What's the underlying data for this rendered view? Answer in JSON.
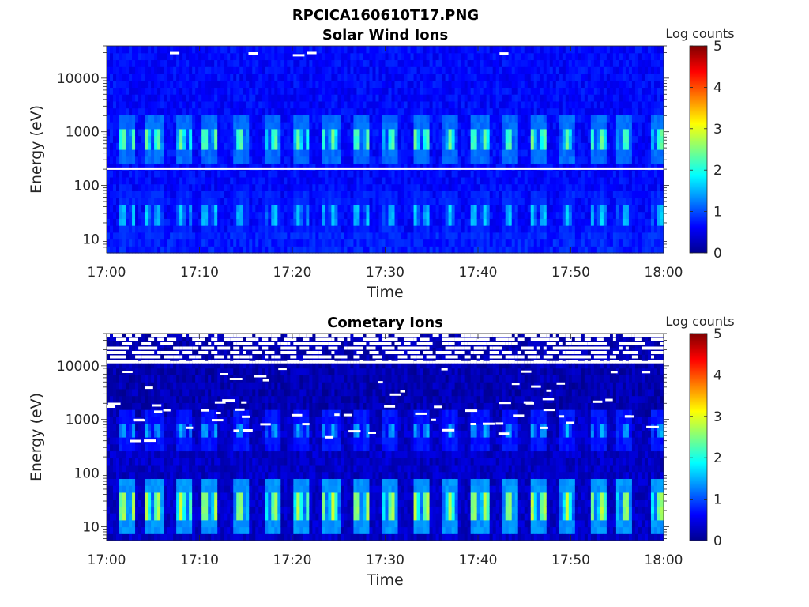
{
  "figure": {
    "title": "RPCICA160610T17.PNG",
    "colormap": "jet"
  },
  "chart_data": [
    {
      "type": "heatmap",
      "title": "Solar Wind Ions",
      "xlabel": "Time",
      "ylabel": "Energy (eV)",
      "y_scale": "log",
      "xlim": [
        "17:00",
        "18:00"
      ],
      "ylim": [
        5.5,
        40000
      ],
      "x_ticks": [
        "17:00",
        "17:10",
        "17:20",
        "17:30",
        "17:40",
        "17:50",
        "18:00"
      ],
      "y_ticks": [
        {
          "value": 10,
          "label": "10"
        },
        {
          "value": 100,
          "label": "100"
        },
        {
          "value": 1000,
          "label": "1000"
        },
        {
          "value": 10000,
          "label": "10000"
        }
      ],
      "colorbar": {
        "label": "Log counts",
        "range": [
          0,
          5
        ],
        "ticks": [
          "0",
          "1",
          "2",
          "3",
          "4",
          "5"
        ]
      },
      "background_level": 0.65,
      "bands": [
        {
          "energy_low": 480,
          "energy_high": 1100,
          "peak_level": 2.1
        },
        {
          "energy_low": 18,
          "energy_high": 38,
          "peak_level": 1.45
        }
      ],
      "pulse_start_minutes": [
        1.5,
        4.4,
        7.5,
        10.5,
        13.8,
        17.1,
        20.3,
        23.5,
        26.8,
        29.8,
        33.1,
        36.3,
        39.5,
        42.8,
        45.8,
        48.9,
        52.2,
        55.1,
        58.7
      ],
      "pulse_duration_minutes": 1.6,
      "missing_energy_line": 205,
      "sparse_high_energy_gaps": true
    },
    {
      "type": "heatmap",
      "title": "Cometary Ions",
      "xlabel": "Time",
      "ylabel": "Energy (eV)",
      "y_scale": "log",
      "xlim": [
        "17:00",
        "18:00"
      ],
      "ylim": [
        5.5,
        40000
      ],
      "x_ticks": [
        "17:00",
        "17:10",
        "17:20",
        "17:30",
        "17:40",
        "17:50",
        "18:00"
      ],
      "y_ticks": [
        {
          "value": 10,
          "label": "10"
        },
        {
          "value": 100,
          "label": "100"
        },
        {
          "value": 1000,
          "label": "1000"
        },
        {
          "value": 10000,
          "label": "10000"
        }
      ],
      "colorbar": {
        "label": "Log counts",
        "range": [
          0,
          5
        ],
        "ticks": [
          "0",
          "1",
          "2",
          "3",
          "4",
          "5"
        ]
      },
      "background_level": 0.35,
      "bands": [
        {
          "energy_low": 530,
          "energy_high": 850,
          "peak_level": 1.3
        },
        {
          "energy_low": 14,
          "energy_high": 40,
          "peak_level": 2.45
        }
      ],
      "pulse_start_minutes": [
        1.5,
        4.4,
        7.5,
        10.5,
        13.8,
        17.1,
        20.3,
        23.5,
        26.8,
        29.8,
        33.1,
        36.3,
        39.5,
        42.8,
        45.8,
        48.9,
        52.2,
        55.1,
        58.7
      ],
      "pulse_duration_minutes": 1.6,
      "missing_energy_line": null,
      "sparse_high_energy_gaps": true,
      "dense_high_energy_gaps_above": 11500
    }
  ]
}
